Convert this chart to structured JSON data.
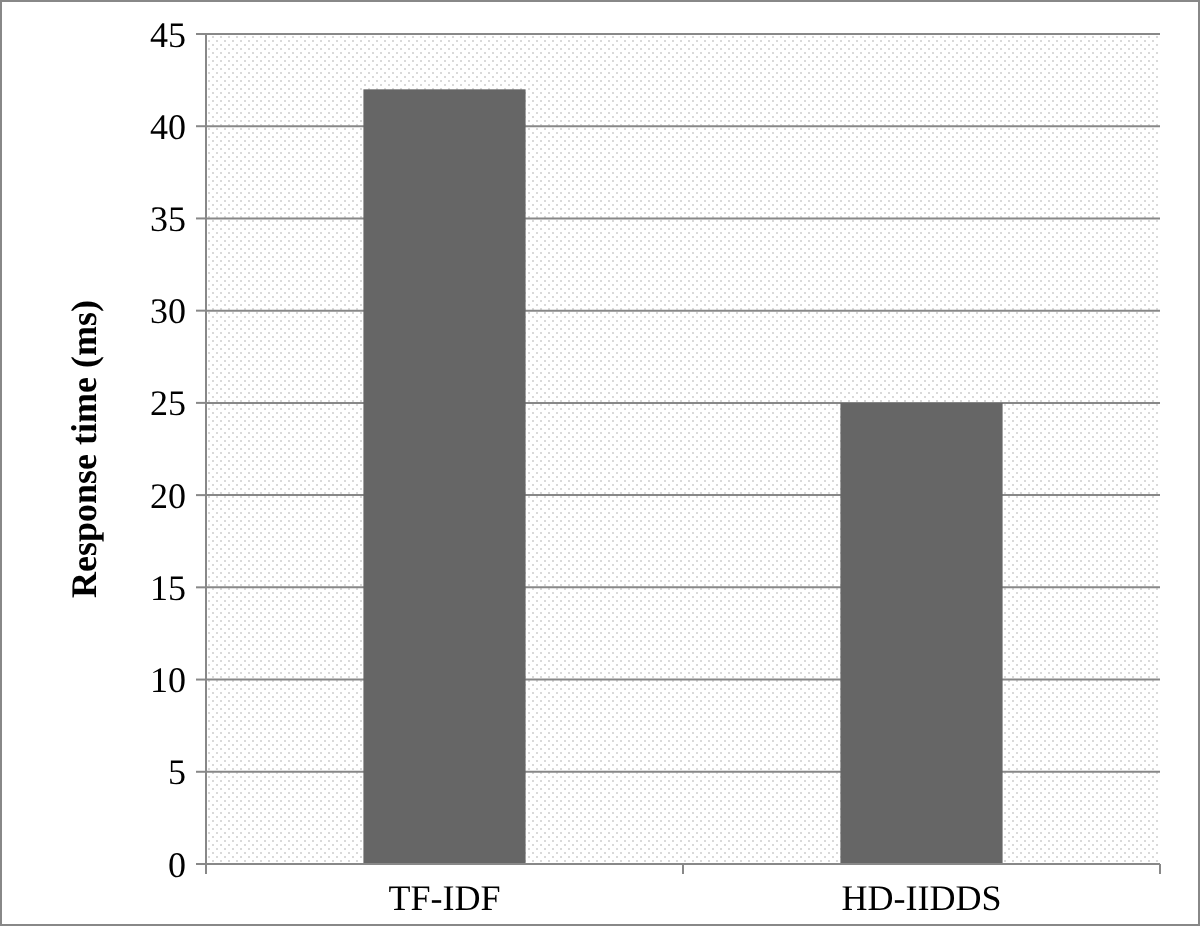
{
  "chart_data": {
    "type": "bar",
    "ylabel": "Response time (ms)",
    "categories": [
      "TF-IDF",
      "HD-IIDDS"
    ],
    "values": [
      42,
      25
    ],
    "color": "#666666",
    "ylim": [
      0,
      45
    ],
    "yticks": [
      0,
      5,
      10,
      15,
      20,
      25,
      30,
      35,
      40,
      45
    ],
    "grid": "y"
  }
}
